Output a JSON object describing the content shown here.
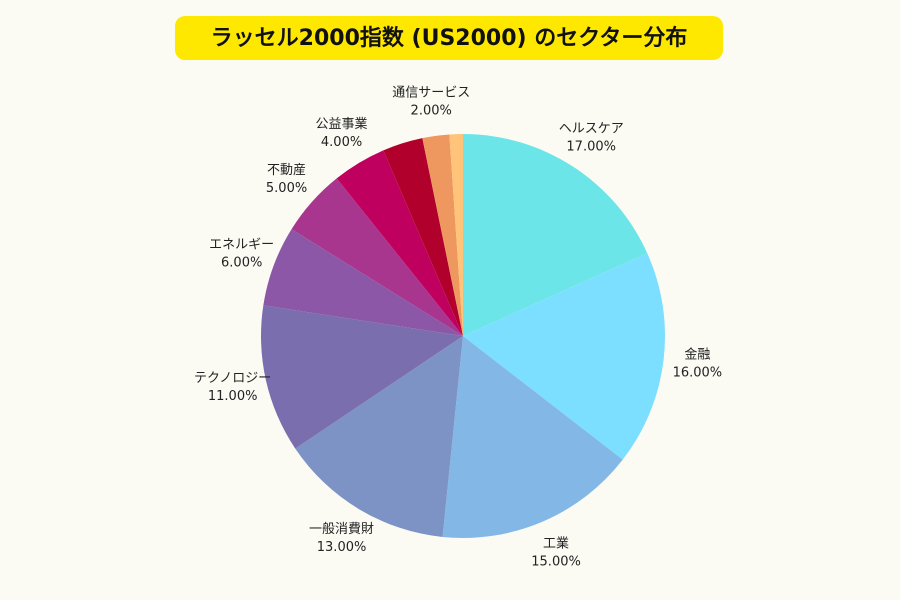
{
  "chart_data": {
    "type": "pie",
    "title": "ラッセル2000指数 (US2000) のセクター分布",
    "categories": [
      "ヘルスケア",
      "金融",
      "工業",
      "一般消費財",
      "テクノロジー",
      "エネルギー",
      "不動産",
      "公益事業",
      null,
      "通信サービス",
      null
    ],
    "values": [
      17,
      16,
      15,
      13,
      11,
      6,
      5,
      4,
      3,
      2,
      1
    ],
    "value_labels": [
      "17.00%",
      "16.00%",
      "15.00%",
      "13.00%",
      "11.00%",
      "6.00%",
      "5.00%",
      "4.00%",
      null,
      "2.00%",
      null
    ],
    "colors": [
      "#6ce5e8",
      "#7ddfff",
      "#83b8e6",
      "#7e93c5",
      "#7a6eae",
      "#8c57a6",
      "#a8368f",
      "#c0005e",
      "#b1002c",
      "#ee9860",
      "#ffc47a"
    ]
  }
}
